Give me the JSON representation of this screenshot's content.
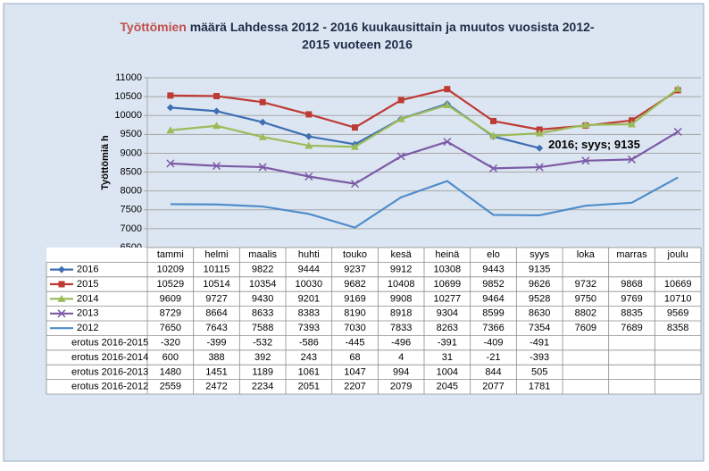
{
  "chart_data": {
    "type": "line",
    "title_parts": [
      "Työttömien",
      " määrä Lahdessa 2012 - 2016 kuukausittain ja muutos vuosista 2012-",
      "2015 vuoteen 2016"
    ],
    "y_label": "Työttömiä h",
    "categories": [
      "tammi",
      "helmi",
      "maalis",
      "huhti",
      "touko",
      "kesä",
      "heinä",
      "elo",
      "syys",
      "loka",
      "marras",
      "joulu"
    ],
    "ylim": [
      6500,
      11000
    ],
    "yticks": [
      6500,
      7000,
      7500,
      8000,
      8500,
      9000,
      9500,
      10000,
      10500,
      11000
    ],
    "grid": true,
    "series": [
      {
        "name": "2016",
        "color": "#3e6fb3",
        "marker": "diamond",
        "values": [
          10209,
          10115,
          9822,
          9444,
          9237,
          9912,
          10308,
          9443,
          9135,
          null,
          null,
          null
        ],
        "value_labels": [
          null,
          null,
          null,
          null,
          null,
          null,
          null,
          null,
          "2016; syys; 9135",
          null,
          null,
          null
        ]
      },
      {
        "name": "2015",
        "color": "#be3a34",
        "marker": "square",
        "values": [
          10529,
          10514,
          10354,
          10030,
          9682,
          10408,
          10699,
          9852,
          9626,
          9732,
          9868,
          10669
        ]
      },
      {
        "name": "2014",
        "color": "#9bbb59",
        "marker": "triangle",
        "values": [
          9609,
          9727,
          9430,
          9201,
          9169,
          9908,
          10277,
          9464,
          9528,
          9750,
          9769,
          10710
        ]
      },
      {
        "name": "2013",
        "color": "#7b5aa6",
        "marker": "x",
        "values": [
          8729,
          8664,
          8633,
          8383,
          8190,
          8918,
          9304,
          8599,
          8630,
          8802,
          8835,
          9569
        ]
      },
      {
        "name": "2012",
        "color": "#4f8cc9",
        "marker": "none",
        "values": [
          7650,
          7643,
          7588,
          7393,
          7030,
          7833,
          8263,
          7366,
          7354,
          7609,
          7689,
          8358
        ]
      }
    ],
    "table_rows": [
      {
        "name": "erotus 2016-2015",
        "values": [
          -320,
          -399,
          -532,
          -586,
          -445,
          -496,
          -391,
          -409,
          -491,
          null,
          null,
          null
        ]
      },
      {
        "name": "erotus 2016-2014",
        "values": [
          600,
          388,
          392,
          243,
          68,
          4,
          31,
          -21,
          -393,
          null,
          null,
          null
        ]
      },
      {
        "name": "erotus 2016-2013",
        "values": [
          1480,
          1451,
          1189,
          1061,
          1047,
          994,
          1004,
          844,
          505,
          null,
          null,
          null
        ]
      },
      {
        "name": "erotus 2016-2012",
        "values": [
          2559,
          2472,
          2234,
          2051,
          2207,
          2079,
          2045,
          2077,
          1781,
          null,
          null,
          null
        ]
      }
    ]
  }
}
